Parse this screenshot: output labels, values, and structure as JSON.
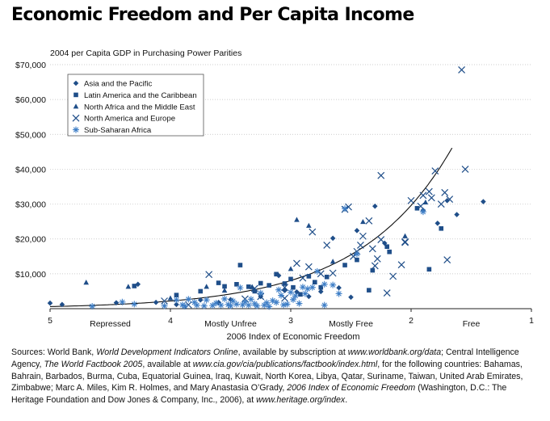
{
  "title": "Economic Freedom and Per Capita Income",
  "chart_data": {
    "type": "scatter",
    "ylabel": "2004 per Capita GDP in Purchasing Power Parities",
    "xlabel": "2006 Index of Economic Freedom",
    "xlim": [
      5,
      1
    ],
    "ylim": [
      0,
      70000
    ],
    "x_direction": "reversed",
    "x_ticks": [
      "5",
      "4",
      "3",
      "2",
      "1"
    ],
    "y_ticks": [
      "$10,000",
      "$20,000",
      "$30,000",
      "$40,000",
      "$50,000",
      "$60,000",
      "$70,000"
    ],
    "zones": [
      "Repressed",
      "Mostly Unfree",
      "Mostly Free",
      "Free"
    ],
    "legend_position": "top-left",
    "series": [
      {
        "name": "Asia and the Pacific",
        "marker": "diamond",
        "color": "#1f4e89",
        "points": [
          [
            5.0,
            1600
          ],
          [
            4.9,
            1200
          ],
          [
            4.45,
            1700
          ],
          [
            4.27,
            7000
          ],
          [
            4.12,
            1800
          ],
          [
            3.95,
            1200
          ],
          [
            3.75,
            2500
          ],
          [
            3.6,
            1800
          ],
          [
            3.5,
            2600
          ],
          [
            3.25,
            3500
          ],
          [
            3.1,
            9500
          ],
          [
            3.05,
            5200
          ],
          [
            2.95,
            4800
          ],
          [
            2.85,
            3500
          ],
          [
            2.75,
            4900
          ],
          [
            2.65,
            20200
          ],
          [
            2.6,
            6000
          ],
          [
            2.5,
            3300
          ],
          [
            2.45,
            22400
          ],
          [
            2.3,
            29400
          ],
          [
            2.22,
            18800
          ],
          [
            1.9,
            28200
          ],
          [
            1.78,
            24500
          ],
          [
            1.7,
            31000
          ],
          [
            1.62,
            27000
          ],
          [
            1.4,
            30700
          ]
        ]
      },
      {
        "name": "Latin America and the Caribbean",
        "marker": "square",
        "color": "#1f4e89",
        "points": [
          [
            4.3,
            6500
          ],
          [
            3.95,
            3900
          ],
          [
            3.75,
            5000
          ],
          [
            3.6,
            7400
          ],
          [
            3.55,
            6400
          ],
          [
            3.45,
            7000
          ],
          [
            3.42,
            12500
          ],
          [
            3.35,
            6300
          ],
          [
            3.3,
            5000
          ],
          [
            3.25,
            7300
          ],
          [
            3.18,
            6700
          ],
          [
            3.12,
            9900
          ],
          [
            3.05,
            7200
          ],
          [
            3.0,
            8500
          ],
          [
            2.98,
            6100
          ],
          [
            2.92,
            4100
          ],
          [
            2.85,
            9300
          ],
          [
            2.8,
            7600
          ],
          [
            2.75,
            6100
          ],
          [
            2.7,
            9100
          ],
          [
            2.55,
            12500
          ],
          [
            2.45,
            14000
          ],
          [
            2.35,
            5300
          ],
          [
            2.32,
            11000
          ],
          [
            2.2,
            17800
          ],
          [
            2.18,
            16300
          ],
          [
            1.95,
            28800
          ],
          [
            1.85,
            11300
          ],
          [
            1.75,
            23000
          ]
        ]
      },
      {
        "name": "North Africa and the Middle East",
        "marker": "triangle",
        "color": "#1f4e89",
        "points": [
          [
            4.7,
            7500
          ],
          [
            4.35,
            6300
          ],
          [
            4.0,
            3000
          ],
          [
            3.7,
            6300
          ],
          [
            3.55,
            5200
          ],
          [
            3.32,
            6200
          ],
          [
            3.0,
            11400
          ],
          [
            2.95,
            25500
          ],
          [
            2.85,
            23800
          ],
          [
            2.65,
            13500
          ],
          [
            2.4,
            24900
          ],
          [
            2.05,
            20800
          ],
          [
            1.88,
            30500
          ]
        ]
      },
      {
        "name": "North America and Europe",
        "marker": "x",
        "color": "#1f4e89",
        "points": [
          [
            4.05,
            2200
          ],
          [
            3.85,
            1100
          ],
          [
            3.68,
            9800
          ],
          [
            3.38,
            2800
          ],
          [
            3.3,
            5800
          ],
          [
            3.25,
            3500
          ],
          [
            3.05,
            6100
          ],
          [
            3.05,
            3000
          ],
          [
            2.95,
            13000
          ],
          [
            2.9,
            8800
          ],
          [
            2.85,
            12000
          ],
          [
            2.82,
            22000
          ],
          [
            2.75,
            10000
          ],
          [
            2.7,
            18200
          ],
          [
            2.65,
            10200
          ],
          [
            2.55,
            28500
          ],
          [
            2.52,
            29200
          ],
          [
            2.48,
            15000
          ],
          [
            2.45,
            16400
          ],
          [
            2.42,
            18200
          ],
          [
            2.4,
            20800
          ],
          [
            2.35,
            25200
          ],
          [
            2.32,
            17200
          ],
          [
            2.3,
            12300
          ],
          [
            2.28,
            14300
          ],
          [
            2.25,
            38200
          ],
          [
            2.25,
            19800
          ],
          [
            2.2,
            4500
          ],
          [
            2.15,
            9300
          ],
          [
            2.08,
            12600
          ],
          [
            2.05,
            19000
          ],
          [
            2.05,
            19200
          ],
          [
            2.0,
            31000
          ],
          [
            1.92,
            29400
          ],
          [
            1.9,
            32500
          ],
          [
            1.85,
            33600
          ],
          [
            1.83,
            31800
          ],
          [
            1.8,
            39500
          ],
          [
            1.75,
            30000
          ],
          [
            1.72,
            33300
          ],
          [
            1.7,
            14000
          ],
          [
            1.68,
            31400
          ],
          [
            1.58,
            68500
          ],
          [
            1.55,
            40000
          ]
        ]
      },
      {
        "name": "Sub-Saharan Africa",
        "marker": "asterisk",
        "color": "#3f7fc7",
        "points": [
          [
            4.65,
            700
          ],
          [
            4.4,
            1900
          ],
          [
            4.3,
            1300
          ],
          [
            4.05,
            800
          ],
          [
            3.95,
            2500
          ],
          [
            3.9,
            1100
          ],
          [
            3.88,
            700
          ],
          [
            3.85,
            2700
          ],
          [
            3.8,
            1800
          ],
          [
            3.78,
            1000
          ],
          [
            3.72,
            800
          ],
          [
            3.7,
            2500
          ],
          [
            3.65,
            900
          ],
          [
            3.62,
            1600
          ],
          [
            3.58,
            1000
          ],
          [
            3.55,
            2800
          ],
          [
            3.52,
            1200
          ],
          [
            3.5,
            800
          ],
          [
            3.48,
            2200
          ],
          [
            3.45,
            1300
          ],
          [
            3.42,
            6000
          ],
          [
            3.4,
            1100
          ],
          [
            3.38,
            1900
          ],
          [
            3.35,
            1000
          ],
          [
            3.33,
            2700
          ],
          [
            3.3,
            1400
          ],
          [
            3.28,
            800
          ],
          [
            3.25,
            4500
          ],
          [
            3.22,
            1000
          ],
          [
            3.2,
            1700
          ],
          [
            3.18,
            600
          ],
          [
            3.15,
            2300
          ],
          [
            3.12,
            1800
          ],
          [
            3.1,
            5400
          ],
          [
            3.08,
            3800
          ],
          [
            3.06,
            1100
          ],
          [
            3.03,
            1300
          ],
          [
            3.0,
            4700
          ],
          [
            2.98,
            2600
          ],
          [
            2.96,
            3700
          ],
          [
            2.93,
            1500
          ],
          [
            2.9,
            6200
          ],
          [
            2.88,
            4300
          ],
          [
            2.86,
            5700
          ],
          [
            2.82,
            6100
          ],
          [
            2.78,
            10700
          ],
          [
            2.72,
            7000
          ],
          [
            2.72,
            1000
          ],
          [
            2.65,
            6800
          ],
          [
            2.6,
            4300
          ],
          [
            2.55,
            28700
          ],
          [
            2.45,
            15700
          ],
          [
            1.9,
            27800
          ]
        ]
      }
    ],
    "trendline": "exponential"
  },
  "sources": {
    "p1": "Sources: World Bank, ",
    "i1": "World Development Indicators Online",
    "p2": ", available by subscription at ",
    "i2": "www.worldbank.org/data",
    "p3": "; Central Intelligence Agency, ",
    "i3": "The World Factbook 2005",
    "p4": ", available at ",
    "i4": "www.cia.gov/cia/publications/factbook/index.html",
    "p5": ", for the following countries: Bahamas, Bahrain, Barbados, Burma, Cuba, Equatorial Guinea, Iraq, Kuwait, North Korea, Libya, Qatar, Suriname, Taiwan, United Arab Emirates, Zimbabwe; Marc A. Miles, Kim R. Holmes, and Mary Anastasia O’Grady, ",
    "i5": "2006 Index of Economic Freedom",
    "p6": " (Washington, D.C.: The Heritage Foundation and Dow Jones & Company, Inc., 2006), at ",
    "i6": "www.heritage.org/index",
    "p7": "."
  }
}
